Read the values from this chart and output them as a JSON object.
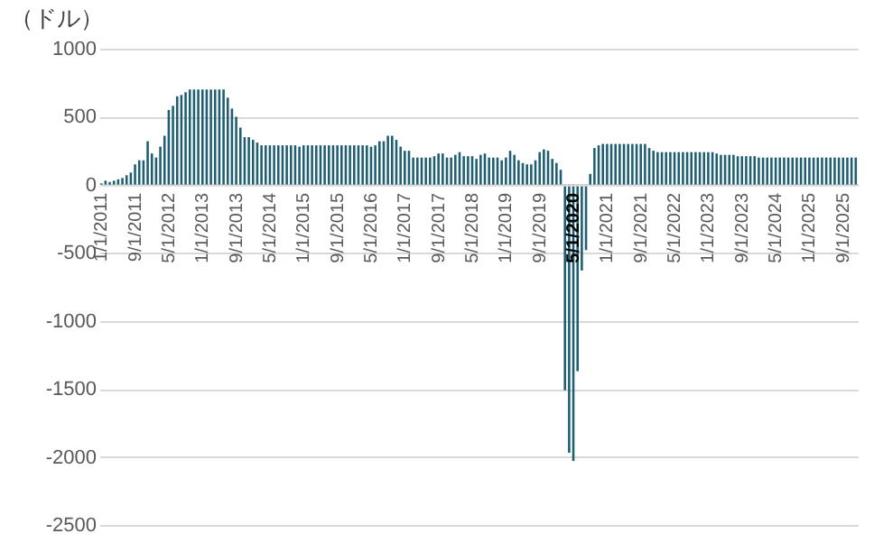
{
  "chart_data": {
    "type": "bar",
    "ylabel": "（ドル）",
    "categories": [
      "1/1/2011",
      null,
      null,
      null,
      null,
      null,
      null,
      null,
      "9/1/2011",
      null,
      null,
      null,
      null,
      null,
      null,
      null,
      "5/1/2012",
      null,
      null,
      null,
      null,
      null,
      null,
      null,
      "1/1/2013",
      null,
      null,
      null,
      null,
      null,
      null,
      null,
      "9/1/2013",
      null,
      null,
      null,
      null,
      null,
      null,
      null,
      "5/1/2014",
      null,
      null,
      null,
      null,
      null,
      null,
      null,
      "1/1/2015",
      null,
      null,
      null,
      null,
      null,
      null,
      null,
      "9/1/2015",
      null,
      null,
      null,
      null,
      null,
      null,
      null,
      "5/1/2016",
      null,
      null,
      null,
      null,
      null,
      null,
      null,
      "1/1/2017",
      null,
      null,
      null,
      null,
      null,
      null,
      null,
      "9/1/2017",
      null,
      null,
      null,
      null,
      null,
      null,
      null,
      "5/1/2018",
      null,
      null,
      null,
      null,
      null,
      null,
      null,
      "1/1/2019",
      null,
      null,
      null,
      null,
      null,
      null,
      null,
      "9/1/2019",
      null,
      null,
      null,
      null,
      null,
      null,
      null,
      "5/1/2020",
      null,
      null,
      null,
      null,
      null,
      null,
      null,
      "1/1/2021",
      null,
      null,
      null,
      null,
      null,
      null,
      null,
      "9/1/2021",
      null,
      null,
      null,
      null,
      null,
      null,
      null,
      "5/1/2022",
      null,
      null,
      null,
      null,
      null,
      null,
      null,
      "1/1/2023",
      null,
      null,
      null,
      null,
      null,
      null,
      null,
      "9/1/2023",
      null,
      null,
      null,
      null,
      null,
      null,
      null,
      "5/1/2024",
      null,
      null,
      null,
      null,
      null,
      null,
      null,
      "1/1/2025",
      null,
      null,
      null,
      null,
      null,
      null,
      null,
      "9/1/2025",
      null,
      null,
      null
    ],
    "series": [
      {
        "color": "#1d5e72",
        "values": [
          10,
          30,
          20,
          30,
          40,
          50,
          70,
          90,
          150,
          180,
          180,
          320,
          230,
          200,
          280,
          360,
          550,
          580,
          650,
          660,
          680,
          700,
          700,
          700,
          700,
          700,
          700,
          700,
          700,
          700,
          640,
          560,
          500,
          420,
          350,
          350,
          330,
          310,
          290,
          290,
          290,
          290,
          290,
          290,
          290,
          290,
          290,
          280,
          290,
          290,
          290,
          290,
          290,
          290,
          290,
          290,
          290,
          290,
          290,
          290,
          290,
          290,
          290,
          290,
          280,
          290,
          320,
          320,
          360,
          360,
          330,
          280,
          250,
          250,
          200,
          200,
          200,
          200,
          200,
          210,
          230,
          230,
          200,
          200,
          220,
          240,
          210,
          210,
          210,
          190,
          220,
          230,
          200,
          200,
          200,
          180,
          200,
          250,
          220,
          180,
          160,
          150,
          150,
          180,
          240,
          260,
          250,
          190,
          160,
          110,
          -1510,
          -1970,
          -2030,
          -1370,
          -630,
          -480,
          80,
          270,
          290,
          300,
          300,
          300,
          300,
          300,
          300,
          300,
          300,
          300,
          300,
          300,
          270,
          250,
          240,
          240,
          240,
          240,
          240,
          240,
          240,
          240,
          240,
          240,
          240,
          240,
          240,
          240,
          230,
          220,
          220,
          220,
          220,
          210,
          210,
          210,
          210,
          210,
          200,
          200,
          200,
          200,
          200,
          200,
          200,
          200,
          200,
          200,
          200,
          200,
          200,
          200,
          200,
          200,
          200,
          200,
          200,
          200,
          200,
          200,
          200,
          200
        ]
      }
    ],
    "ylim": [
      -2500,
      1000
    ],
    "yticks": [
      -2500,
      -2000,
      -1500,
      -1000,
      -500,
      0,
      500,
      1000
    ],
    "grid": "y"
  }
}
